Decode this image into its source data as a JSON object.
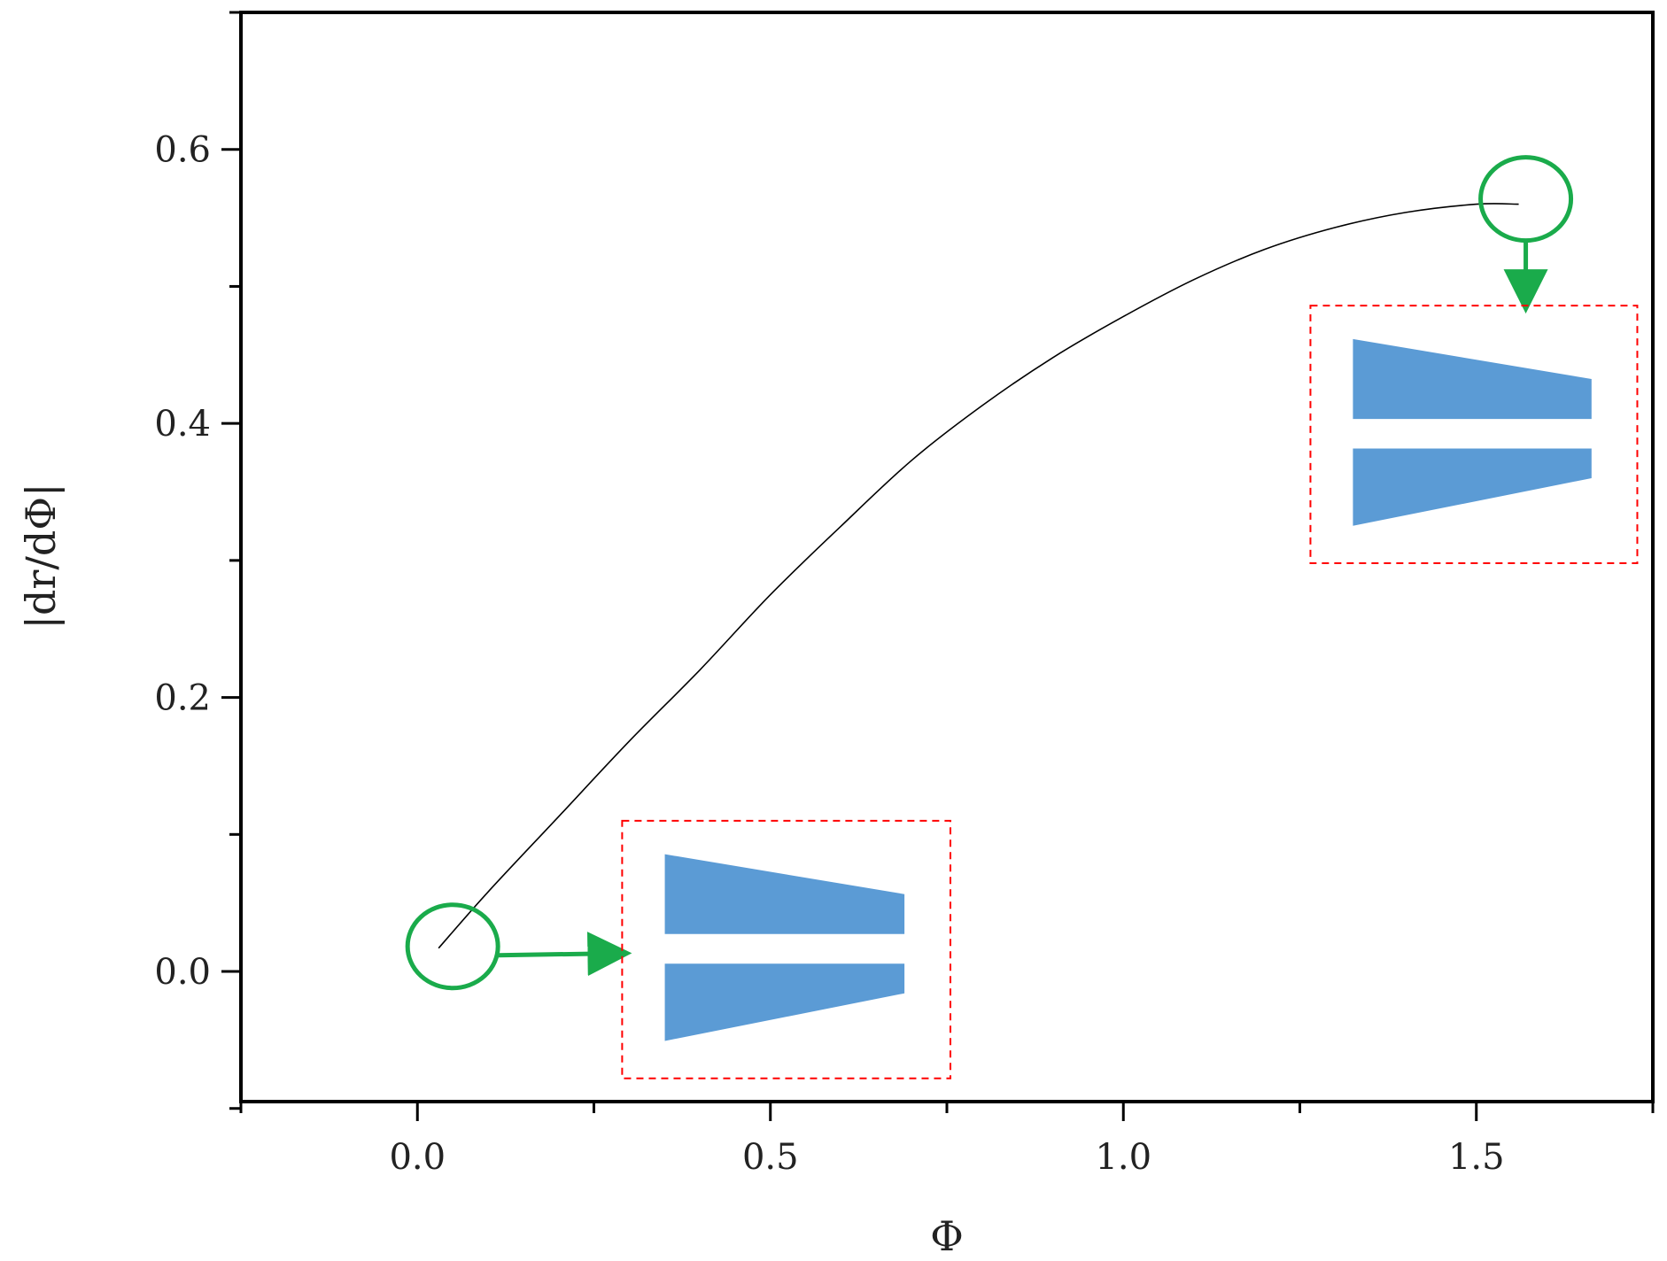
{
  "chart_data": {
    "type": "line",
    "xlabel": "Φ",
    "ylabel": "|dr/dΦ|",
    "xlim": [
      -0.25,
      1.75
    ],
    "ylim": [
      -0.095,
      0.7
    ],
    "x_ticks": [
      0.0,
      0.5,
      1.0,
      1.5
    ],
    "x_tick_labels": [
      "0.0",
      "0.5",
      "1.0",
      "1.5"
    ],
    "x_minor_ticks": [
      -0.25,
      0.25,
      0.75,
      1.25,
      1.75
    ],
    "y_ticks": [
      0.0,
      0.2,
      0.4,
      0.6
    ],
    "y_tick_labels": [
      "0.0",
      "0.2",
      "0.4",
      "0.6"
    ],
    "y_minor_ticks": [
      -0.1,
      0.1,
      0.3,
      0.5,
      0.7
    ],
    "grid": false,
    "series": [
      {
        "color": "#000000",
        "x": [
          0.03,
          0.1,
          0.2,
          0.3,
          0.4,
          0.5,
          0.6,
          0.7,
          0.8,
          0.9,
          1.0,
          1.1,
          1.2,
          1.3,
          1.4,
          1.5,
          1.56
        ],
        "y": [
          0.017,
          0.058,
          0.113,
          0.168,
          0.22,
          0.275,
          0.325,
          0.373,
          0.413,
          0.448,
          0.478,
          0.505,
          0.527,
          0.543,
          0.554,
          0.56,
          0.56
        ]
      }
    ],
    "annotations": [
      {
        "marker": "circle",
        "color": "#1aab4b",
        "at": [
          0.03,
          0.017
        ],
        "arrow": "right",
        "inset_box": {
          "x": [
            0.29,
            0.755
          ],
          "y": [
            -0.078,
            0.11
          ],
          "border_color": "#ff0000",
          "fill_color": "#5b9bd5"
        }
      },
      {
        "marker": "circle",
        "color": "#1aab4b",
        "at": [
          1.56,
          0.56
        ],
        "arrow": "down",
        "inset_box": {
          "x": [
            1.265,
            1.728
          ],
          "y": [
            0.298,
            0.486
          ],
          "border_color": "#ff0000",
          "fill_color": "#5b9bd5"
        }
      }
    ]
  }
}
